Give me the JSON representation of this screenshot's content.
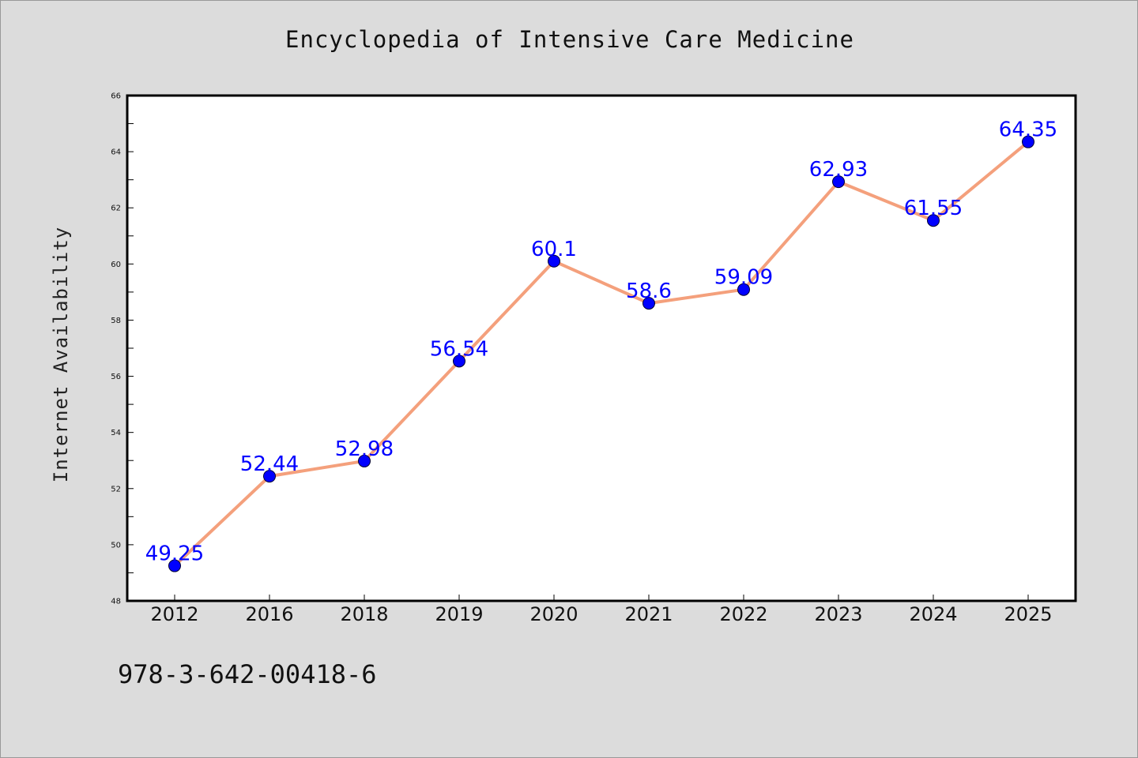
{
  "chart_data": {
    "type": "line",
    "title": "Encyclopedia of Intensive Care Medicine",
    "xlabel": "",
    "ylabel": "Internet Availability",
    "categories": [
      "2012",
      "2016",
      "2018",
      "2019",
      "2020",
      "2021",
      "2022",
      "2023",
      "2024",
      "2025"
    ],
    "values": [
      49.25,
      52.44,
      52.98,
      56.54,
      60.1,
      58.6,
      59.09,
      62.93,
      61.55,
      64.35
    ],
    "data_labels": [
      "49.25",
      "52.44",
      "52.98",
      "56.54",
      "60.1",
      "58.6",
      "59.09",
      "62.93",
      "61.55",
      "64.35"
    ],
    "ylim": [
      48,
      66
    ],
    "yticks": [
      48,
      50,
      52,
      54,
      56,
      58,
      60,
      62,
      64,
      66
    ],
    "grid": false,
    "legend": "none",
    "colors": {
      "line": "#f4a07c",
      "marker": "#0000ff",
      "data_label": "#0000ff",
      "plot_background": "#ffffff",
      "page_background": "#dcdcdc"
    }
  },
  "footer": {
    "isbn": "978-3-642-00418-6"
  }
}
